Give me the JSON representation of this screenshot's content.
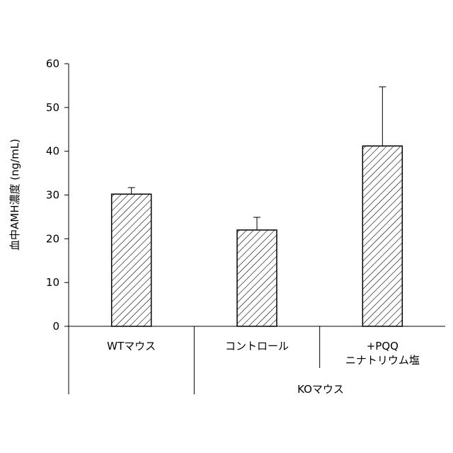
{
  "chart_data": {
    "type": "bar",
    "ylabel": "血中AMH濃度 (ng/mL)",
    "ylim": [
      0,
      60
    ],
    "yticks": [
      "0",
      "10",
      "20",
      "30",
      "40",
      "50",
      "60"
    ],
    "categories": [
      "WTマウス",
      "コントロール",
      "+PQQ\nニナトリウム塩"
    ],
    "values": [
      30.2,
      22.0,
      41.2
    ],
    "errors": [
      1.5,
      2.9,
      13.5
    ],
    "group_label": "KOマウス",
    "group_span": [
      1,
      2
    ],
    "bar_fill": "hatched",
    "grid": false,
    "legend": "none"
  }
}
